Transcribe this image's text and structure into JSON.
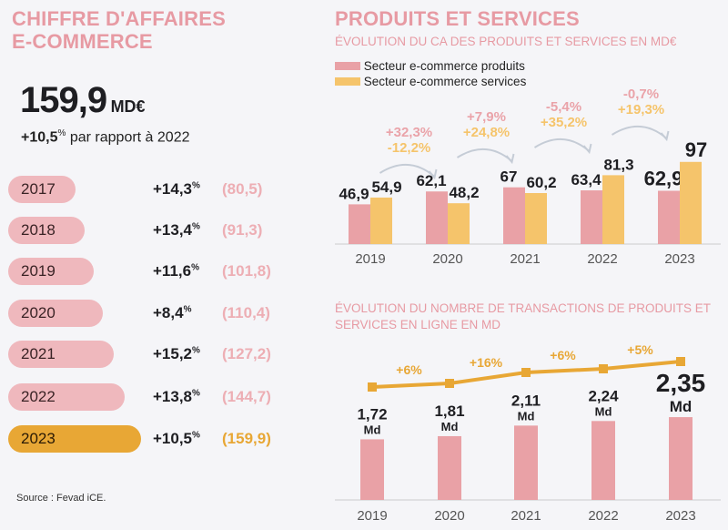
{
  "left": {
    "title_line1": "CHIFFRE D'AFFAIRES",
    "title_line2": "E-COMMERCE",
    "total_value": "159,9",
    "total_unit": "MD€",
    "growth": "+10,5",
    "growth_pct_sign": "%",
    "growth_text": "par rapport à 2022",
    "rows": [
      {
        "year": "2017",
        "pct": "+14,3",
        "value": "(80,5)"
      },
      {
        "year": "2018",
        "pct": "+13,4",
        "value": "(91,3)"
      },
      {
        "year": "2019",
        "pct": "+11,6",
        "value": "(101,8)"
      },
      {
        "year": "2020",
        "pct": "+8,4",
        "value": "(110,4)"
      },
      {
        "year": "2021",
        "pct": "+15,2",
        "value": "(127,2)"
      },
      {
        "year": "2022",
        "pct": "+13,8",
        "value": "(144,7)"
      },
      {
        "year": "2023",
        "pct": "+10,5",
        "value": "(159,9)"
      }
    ],
    "source": "Source : Fevad iCE.",
    "colors": {
      "pill": "#efb8bd",
      "pill_highlight": "#e8a735",
      "value": "#edaeb4"
    }
  },
  "right_title": "PRODUITS ET SERVICES",
  "chart_data": [
    {
      "type": "bar",
      "title": "ÉVOLUTION DU CA DES PRODUITS ET SERVICES EN MD€",
      "categories": [
        "2019",
        "2020",
        "2021",
        "2022",
        "2023"
      ],
      "series": [
        {
          "name": "Secteur e-commerce produits",
          "color": "#e9a1a6",
          "values": [
            46.9,
            62.1,
            67,
            63.4,
            62.9
          ],
          "labels": [
            "46,9",
            "62,1",
            "67",
            "63,4",
            "62,9"
          ]
        },
        {
          "name": "Secteur e-commerce services",
          "color": "#f5c46b",
          "values": [
            54.9,
            48.2,
            60.2,
            81.3,
            97
          ],
          "labels": [
            "54,9",
            "48,2",
            "60,2",
            "81,3",
            "97"
          ]
        }
      ],
      "annotations": [
        {
          "produits": "+32,3%",
          "services": "-12,2%"
        },
        {
          "produits": "+7,9%",
          "services": "+24,8%"
        },
        {
          "produits": "-5,4%",
          "services": "+35,2%"
        },
        {
          "produits": "-0,7%",
          "services": "+19,3%"
        }
      ],
      "legend": "top-left",
      "grid": false
    },
    {
      "type": "bar",
      "title": "ÉVOLUTION DU NOMBRE DE TRANSACTIONS DE PRODUITS ET SERVICES EN LIGNE EN MD",
      "categories": [
        "2019",
        "2020",
        "2021",
        "2022",
        "2023"
      ],
      "values": [
        1.72,
        1.81,
        2.11,
        2.24,
        2.35
      ],
      "labels": [
        "1,72",
        "1,81",
        "2,11",
        "2,24",
        "2,35"
      ],
      "unit": "Md",
      "bar_color": "#e9a1a6",
      "line_color": "#e8a735",
      "growth_labels": [
        "+6%",
        "+16%",
        "+6%",
        "+5%"
      ],
      "grid": false
    }
  ]
}
